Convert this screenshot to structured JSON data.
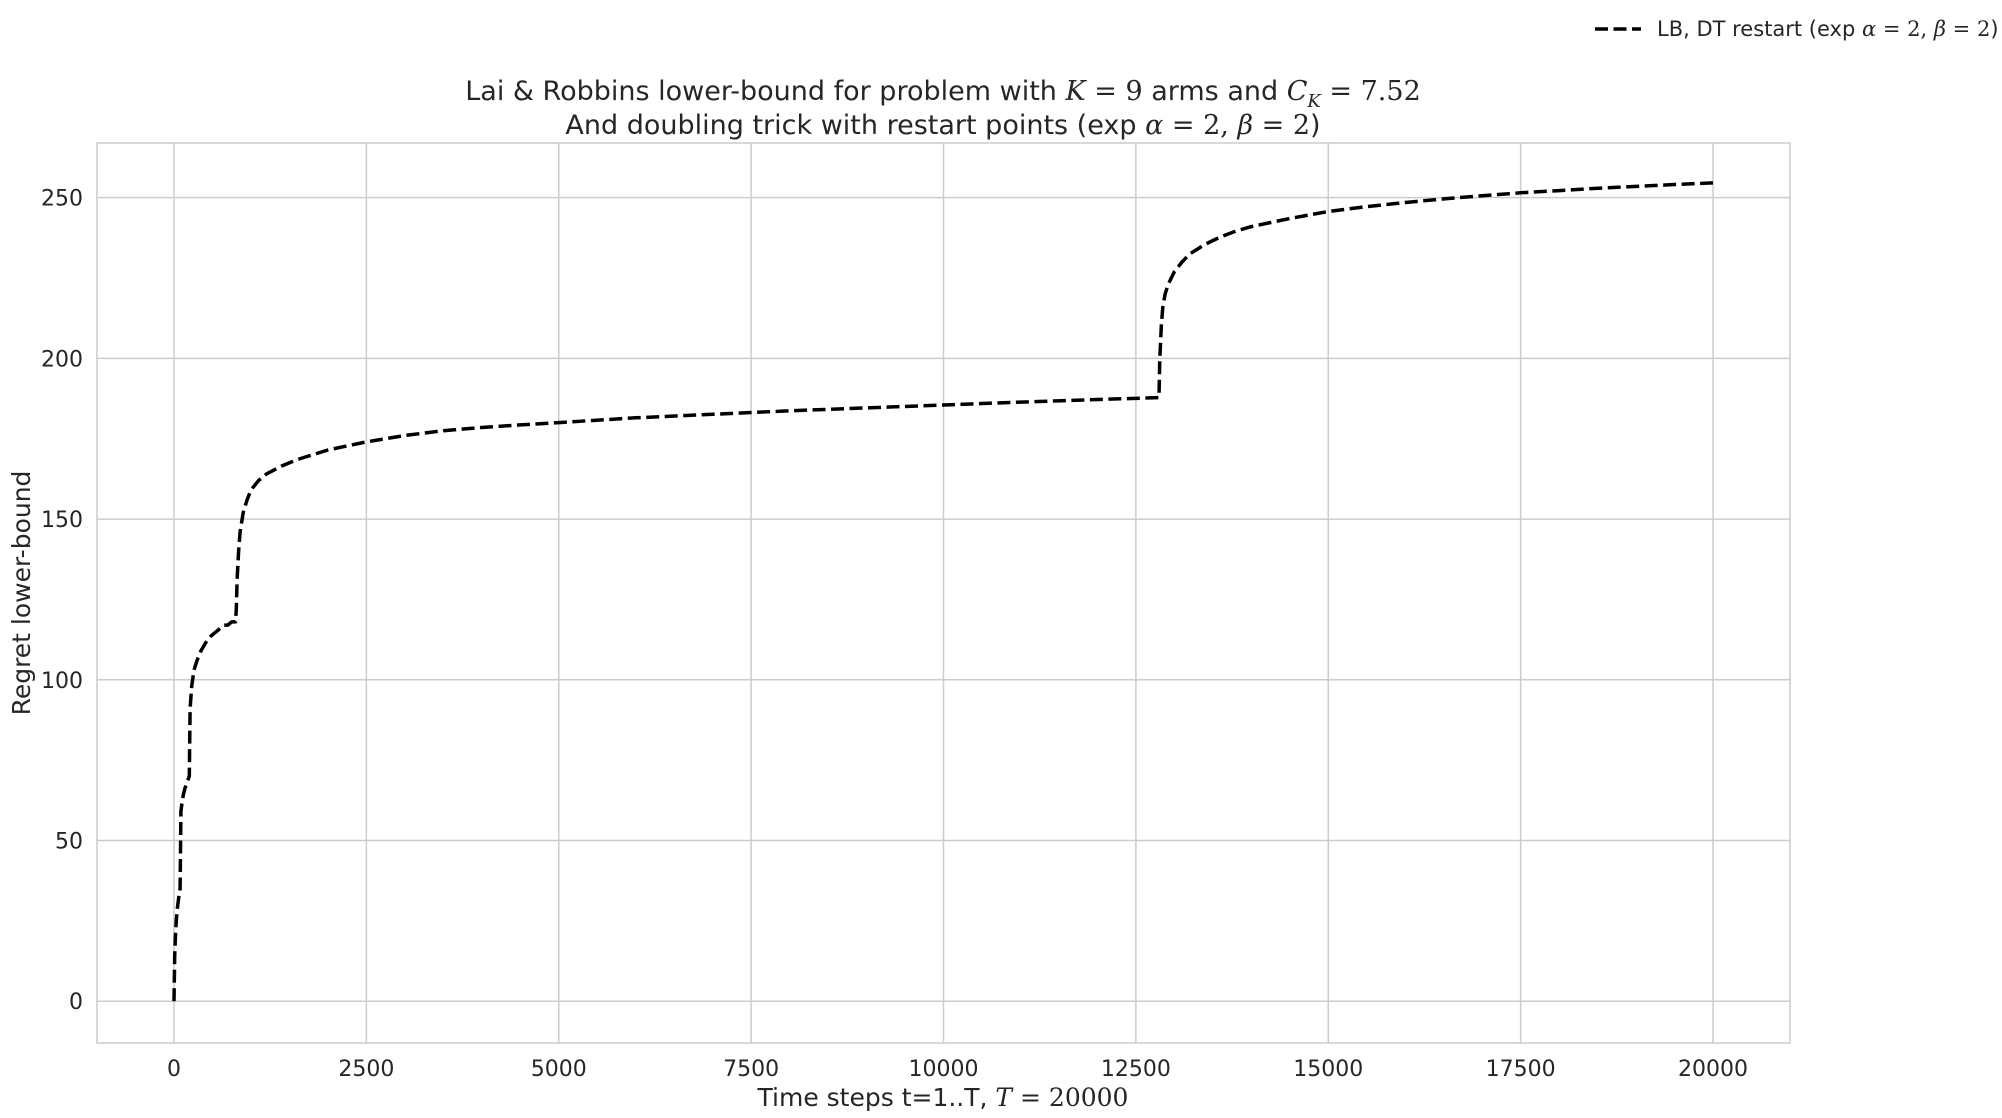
{
  "chart_data": {
    "type": "line",
    "title_lines": [
      [
        {
          "text": "Lai & Robbins lower-bound for problem with ",
          "style": "text"
        },
        {
          "text": "K",
          "style": "math"
        },
        {
          "text": " = 9",
          "style": "math-upright"
        },
        {
          "text": " arms and ",
          "style": "text"
        },
        {
          "text": "C",
          "style": "math"
        },
        {
          "text": "K",
          "style": "sub"
        },
        {
          "text": " = 7.52",
          "style": "math-upright"
        }
      ],
      [
        {
          "text": "And doubling trick with restart points (exp ",
          "style": "text"
        },
        {
          "text": "α",
          "style": "math"
        },
        {
          "text": " = 2, ",
          "style": "math-upright"
        },
        {
          "text": "β",
          "style": "math"
        },
        {
          "text": " = 2",
          "style": "math-upright"
        },
        {
          "text": ")",
          "style": "text"
        }
      ]
    ],
    "xlabel_parts": [
      {
        "text": "Time steps t=1..T, ",
        "style": "text"
      },
      {
        "text": "T",
        "style": "math"
      },
      {
        "text": " = 20000",
        "style": "math-upright"
      }
    ],
    "ylabel": "Regret lower-bound",
    "xlim": [
      -1000,
      21000
    ],
    "ylim": [
      -13,
      267
    ],
    "xticks": [
      0,
      2500,
      5000,
      7500,
      10000,
      12500,
      15000,
      17500,
      20000
    ],
    "yticks": [
      0,
      50,
      100,
      150,
      200,
      250
    ],
    "grid": true,
    "legend_position": "top-right, outside axes",
    "series": [
      {
        "name_parts": [
          {
            "text": "LB, DT restart (exp ",
            "style": "text"
          },
          {
            "text": "α",
            "style": "math"
          },
          {
            "text": " = 2, ",
            "style": "math-upright"
          },
          {
            "text": "β",
            "style": "math"
          },
          {
            "text": " = 2",
            "style": "math-upright"
          },
          {
            "text": ")",
            "style": "text"
          }
        ],
        "color": "#000000",
        "line_style": "dashed",
        "x": [
          1,
          10,
          20,
          30,
          40,
          50,
          60,
          80,
          90,
          100,
          120,
          140,
          170,
          200,
          210,
          230,
          260,
          300,
          350,
          400,
          450,
          500,
          550,
          600,
          650,
          700,
          750,
          800,
          810,
          820,
          840,
          860,
          900,
          950,
          1000,
          1100,
          1200,
          1400,
          1600,
          1800,
          2000,
          2500,
          3000,
          3500,
          4000,
          4500,
          5000,
          6000,
          7000,
          8000,
          9000,
          10000,
          11000,
          12000,
          12800,
          12810,
          12830,
          12850,
          12880,
          12920,
          13000,
          13100,
          13200,
          13400,
          13600,
          13800,
          14000,
          14500,
          15000,
          15500,
          16000,
          16500,
          17000,
          17500,
          18000,
          18500,
          19000,
          19500,
          20000
        ],
        "y": [
          0,
          14,
          21,
          25,
          28,
          30,
          32,
          35,
          59,
          61,
          64,
          66,
          68,
          70,
          91,
          98,
          103,
          106,
          109,
          111,
          113,
          114,
          115,
          116,
          117,
          117,
          118,
          118,
          122,
          131,
          140,
          146,
          152,
          156,
          159,
          162,
          164,
          166.5,
          168.5,
          170,
          171.5,
          174,
          176,
          177.5,
          178.5,
          179.3,
          180,
          181.5,
          182.6,
          183.7,
          184.6,
          185.5,
          186.4,
          187.2,
          187.8,
          199,
          210,
          216,
          220,
          223,
          227,
          230,
          232.5,
          235.5,
          237.8,
          239.6,
          241,
          243.5,
          245.7,
          247.2,
          248.5,
          249.6,
          250.6,
          251.5,
          252.2,
          252.9,
          253.5,
          254.1,
          254.6
        ]
      }
    ]
  }
}
